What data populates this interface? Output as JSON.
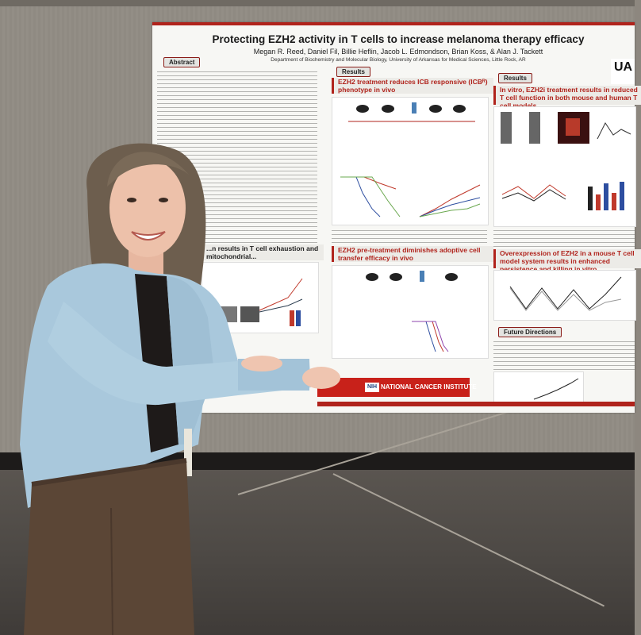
{
  "poster": {
    "title": "Protecting EZH2 activity in T cells to increase melanoma therapy efficacy",
    "authors": "Megan R. Reed, Daniel Fil, Billie Heflin, Jacob L. Edmondson, Brian Koss, & Alan J. Tackett",
    "department": "Department of Biochemistry and Molecular Biology, University of Arkansas for Medical Sciences, Little Rock, AR",
    "logo": "UA",
    "sections": {
      "abstract": "Abstract",
      "results_left": "Results",
      "results_right": "Results",
      "future": "Future Directions"
    },
    "panels": {
      "p1": "EZH2 treatment reduces ICB responsive (ICBᴿ) phenotype in vivo",
      "p2": "EZH2 pre-treatment diminishes adoptive cell transfer efficacy in vivo",
      "p3": "In vitro, EZH2i treatment results in reduced T cell function in both mouse and human T cell models",
      "p4": "Overexpression of EZH2 in a mouse T cell model system results in enhanced persistence and killing in vitro",
      "p5": "...n results in T cell exhaustion and mitochondrial..."
    },
    "footer": {
      "nih": "NIH",
      "nci": "NATIONAL CANCER INSTITUTE"
    }
  },
  "colors": {
    "accent": "#b0231c",
    "wall": "#8f8a82",
    "floor": "#4c4844",
    "sweater": "#a9c8dc",
    "pants": "#5b4636"
  }
}
